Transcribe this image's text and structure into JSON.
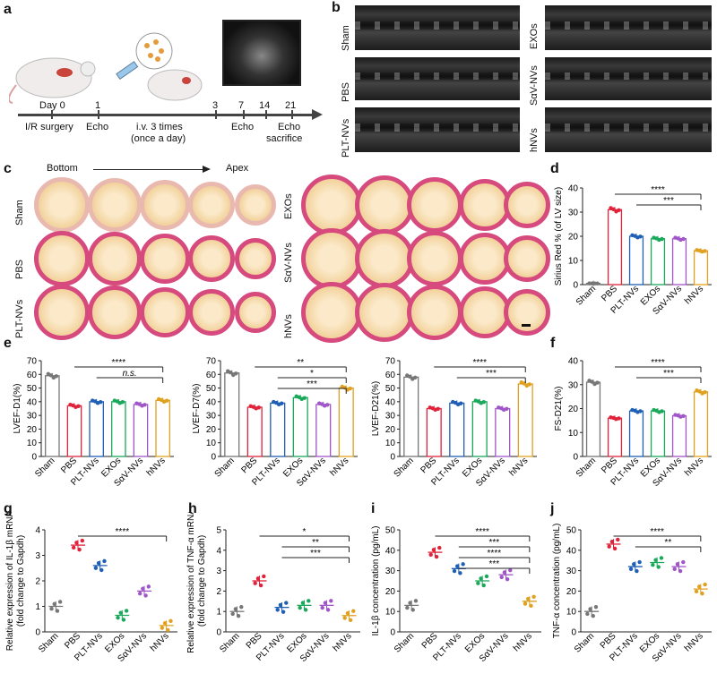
{
  "panels": {
    "a": "a",
    "b": "b",
    "c": "c",
    "d": "d",
    "e": "e",
    "f": "f",
    "g": "g",
    "h": "h",
    "i": "i",
    "j": "j"
  },
  "timeline": {
    "ticks": [
      "Day 0",
      "1",
      "3",
      "7",
      "14",
      "21"
    ],
    "labels": [
      "I/R surgery",
      "Echo",
      "i.v. 3 times",
      "(once a day)",
      "Echo",
      "Echo",
      "sacrifice"
    ]
  },
  "echo_groups": [
    "Sham",
    "EXOs",
    "PBS",
    "SαV-NVs",
    "PLT-NVs",
    "hNVs"
  ],
  "panel_c": {
    "bottom": "Bottom",
    "apex": "Apex",
    "left_groups": [
      "Sham",
      "PBS",
      "PLT-NVs"
    ],
    "right_groups": [
      "EXOs",
      "SαV-NVs",
      "hNVs"
    ]
  },
  "groups": [
    "Sham",
    "PBS",
    "PLT-NVs",
    "EXOs",
    "SαV-NVs",
    "hNVs"
  ],
  "colors": {
    "Sham": "#777777",
    "PBS": "#e0223a",
    "PLT-NVs": "#1f5fb5",
    "EXOs": "#1aa85a",
    "SαV-NVs": "#a055c8",
    "hNVs": "#e0a020"
  },
  "chart_data": [
    {
      "id": "d",
      "type": "bar",
      "ylabel": "Sirius Red % (of LV size)",
      "ylim": [
        0,
        40
      ],
      "yticks": [
        0,
        10,
        20,
        30,
        40
      ],
      "categories": [
        "Sham",
        "PBS",
        "PLT-NVs",
        "EXOs",
        "SαV-NVs",
        "hNVs"
      ],
      "values": [
        0.5,
        31,
        20,
        19,
        19,
        14
      ],
      "annotations": [
        "****",
        "***"
      ]
    },
    {
      "id": "e1",
      "type": "bar",
      "ylabel": "LVEF-D1(%)",
      "ylim": [
        0,
        70
      ],
      "yticks": [
        0,
        10,
        20,
        30,
        40,
        50,
        60,
        70
      ],
      "categories": [
        "Sham",
        "PBS",
        "PLT-NVs",
        "EXOs",
        "SαV-NVs",
        "hNVs"
      ],
      "values": [
        59,
        37,
        40,
        40,
        38,
        41
      ],
      "annotations": [
        "****",
        "n.s."
      ]
    },
    {
      "id": "e2",
      "type": "bar",
      "ylabel": "LVEF-D7(%)",
      "ylim": [
        0,
        70
      ],
      "yticks": [
        0,
        10,
        20,
        30,
        40,
        50,
        60,
        70
      ],
      "categories": [
        "Sham",
        "PBS",
        "PLT-NVs",
        "EXOs",
        "SαV-NVs",
        "hNVs"
      ],
      "values": [
        61,
        36,
        39,
        43,
        38,
        50
      ],
      "annotations": [
        "**",
        "*",
        "***"
      ]
    },
    {
      "id": "e3",
      "type": "bar",
      "ylabel": "LVEF-D21(%)",
      "ylim": [
        0,
        70
      ],
      "yticks": [
        0,
        10,
        20,
        30,
        40,
        50,
        60,
        70
      ],
      "categories": [
        "Sham",
        "PBS",
        "PLT-NVs",
        "EXOs",
        "SαV-NVs",
        "hNVs"
      ],
      "values": [
        58,
        35,
        39,
        40,
        35,
        53
      ],
      "annotations": [
        "****",
        "***"
      ]
    },
    {
      "id": "f",
      "type": "bar",
      "ylabel": "FS-D21(%)",
      "ylim": [
        0,
        40
      ],
      "yticks": [
        0,
        10,
        20,
        30,
        40
      ],
      "categories": [
        "Sham",
        "PBS",
        "PLT-NVs",
        "EXOs",
        "SαV-NVs",
        "hNVs"
      ],
      "values": [
        31,
        16,
        19,
        19,
        17,
        27
      ],
      "annotations": [
        "****",
        "***"
      ]
    },
    {
      "id": "g",
      "type": "scatter",
      "ylabel": "Relative expression of IL-1β mRNA",
      "ylabel2": "(fold change to Gapdh)",
      "ylim": [
        0,
        4
      ],
      "yticks": [
        0,
        1,
        2,
        3,
        4
      ],
      "categories": [
        "Sham",
        "PBS",
        "PLT-NVs",
        "EXOs",
        "SαV-NVs",
        "hNVs"
      ],
      "values": [
        1.0,
        3.4,
        2.6,
        0.65,
        1.6,
        0.25
      ],
      "annotations": [
        "****"
      ]
    },
    {
      "id": "h",
      "type": "scatter",
      "ylabel": "Relative expression of TNF-α mRNA",
      "ylabel2": "(fold change to Gapdh)",
      "ylim": [
        0,
        5
      ],
      "yticks": [
        0,
        1,
        2,
        3,
        4,
        5
      ],
      "categories": [
        "Sham",
        "PBS",
        "PLT-NVs",
        "EXOs",
        "SαV-NVs",
        "hNVs"
      ],
      "values": [
        1.0,
        2.5,
        1.2,
        1.3,
        1.3,
        0.8
      ],
      "annotations": [
        "*",
        "**",
        "***"
      ]
    },
    {
      "id": "i",
      "type": "scatter",
      "ylabel": "IL-1β concentration (pg/mL)",
      "ylim": [
        0,
        50
      ],
      "yticks": [
        0,
        10,
        20,
        30,
        40,
        50
      ],
      "categories": [
        "Sham",
        "PBS",
        "PLT-NVs",
        "EXOs",
        "SαV-NVs",
        "hNVs"
      ],
      "values": [
        13,
        39,
        31,
        25,
        28,
        15
      ],
      "annotations": [
        "****",
        "***",
        "****",
        "***"
      ]
    },
    {
      "id": "j",
      "type": "scatter",
      "ylabel": "TNF-α concentration (pg/mL)",
      "ylim": [
        0,
        50
      ],
      "yticks": [
        0,
        10,
        20,
        30,
        40,
        50
      ],
      "categories": [
        "Sham",
        "PBS",
        "PLT-NVs",
        "EXOs",
        "SαV-NVs",
        "hNVs"
      ],
      "values": [
        10,
        43,
        32,
        34,
        32,
        21
      ],
      "annotations": [
        "****",
        "**"
      ]
    }
  ]
}
